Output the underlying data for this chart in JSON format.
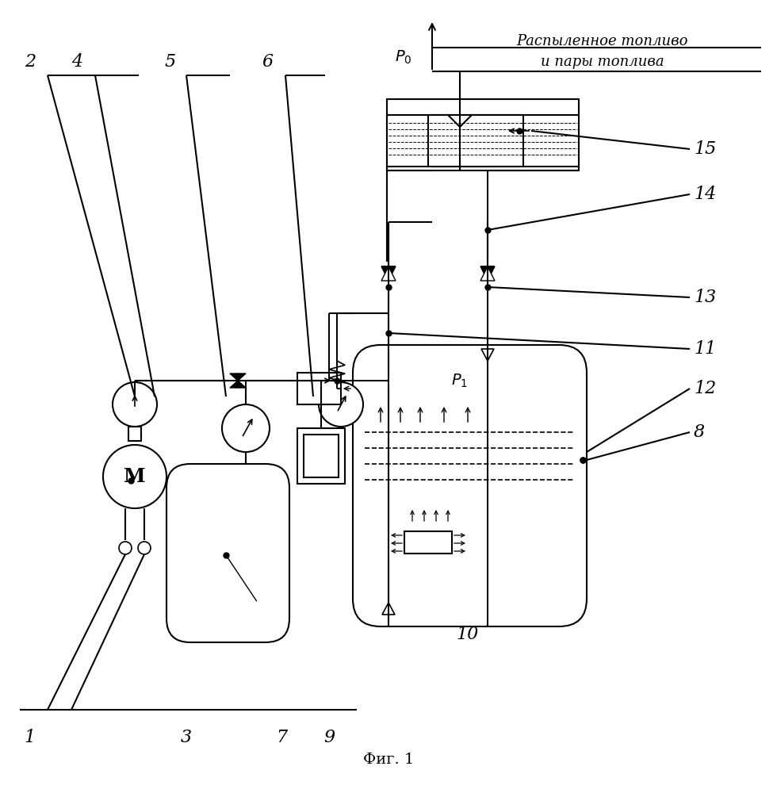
{
  "title": "Фиг. 1",
  "background": "#ffffff",
  "text_spray1": "Распыленное топливо",
  "text_spray2": "и пары топлива",
  "text_M": "M",
  "text_P0": "P₀",
  "text_P1": "P₁"
}
